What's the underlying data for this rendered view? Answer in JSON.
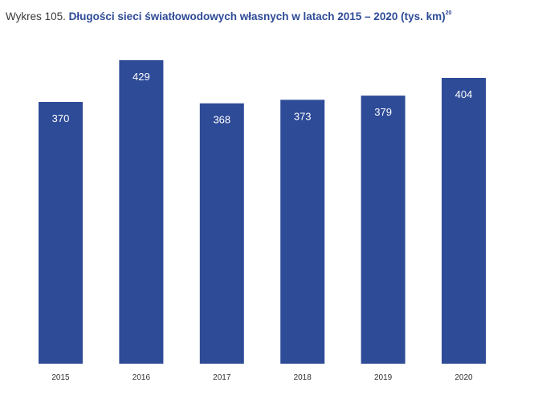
{
  "title": {
    "prefix": "Wykres 105.",
    "main": "Długości sieci światłowodowych własnych w latach 2015 – 2020 (tys. km)",
    "footnote": "20"
  },
  "colors": {
    "bar": "#2e4b97",
    "bar_label": "#ffffff",
    "axis_label": "#333333"
  },
  "chart_data": {
    "type": "bar",
    "title": "Długości sieci światłowodowych własnych w latach 2015 – 2020 (tys. km)",
    "categories": [
      "2015",
      "2016",
      "2017",
      "2018",
      "2019",
      "2020"
    ],
    "values": [
      370,
      429,
      368,
      373,
      379,
      404
    ],
    "data_labels": [
      "370",
      "429",
      "368",
      "373",
      "379",
      "404"
    ],
    "xlabel": "",
    "ylabel": "",
    "ylim": [
      0,
      429
    ],
    "grid": false,
    "legend": "none"
  }
}
